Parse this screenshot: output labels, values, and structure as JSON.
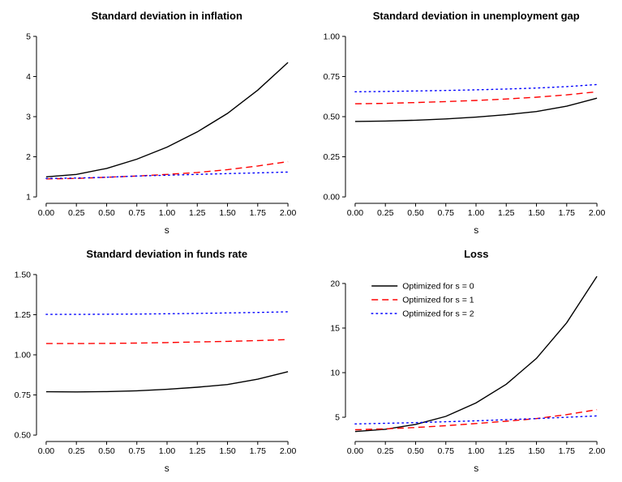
{
  "page": {
    "background": "#ffffff"
  },
  "chart_data": [
    {
      "type": "line",
      "title": "Standard deviation in inflation",
      "xlabel": "s",
      "xlim": [
        0,
        2
      ],
      "ylim": [
        1,
        5
      ],
      "x": [
        0,
        0.25,
        0.5,
        0.75,
        1,
        1.25,
        1.5,
        1.75,
        2
      ],
      "xticks": [
        0,
        0.25,
        0.5,
        0.75,
        1,
        1.25,
        1.5,
        1.75,
        2
      ],
      "xtick_labels": [
        "0.00",
        "0.25",
        "0.50",
        "0.75",
        "1.00",
        "1.25",
        "1.50",
        "1.75",
        "2.00"
      ],
      "yticks": [
        1,
        2,
        3,
        4,
        5
      ],
      "ytick_labels": [
        "1",
        "2",
        "3",
        "4",
        "5"
      ],
      "grid": false,
      "legend": {
        "show": false
      },
      "series": [
        {
          "name": "Optimized for s = 0",
          "color": "#000000",
          "dash": "solid",
          "values": [
            1.5,
            1.56,
            1.71,
            1.94,
            2.24,
            2.62,
            3.08,
            3.66,
            4.35
          ]
        },
        {
          "name": "Optimized for s = 1",
          "color": "#ff0000",
          "dash": "dashed",
          "values": [
            1.45,
            1.46,
            1.49,
            1.52,
            1.56,
            1.61,
            1.68,
            1.77,
            1.88
          ]
        },
        {
          "name": "Optimized for s = 2",
          "color": "#0000ff",
          "dash": "dotted",
          "values": [
            1.46,
            1.47,
            1.49,
            1.52,
            1.54,
            1.56,
            1.58,
            1.6,
            1.62
          ]
        }
      ]
    },
    {
      "type": "line",
      "title": "Standard deviation in unemployment gap",
      "xlabel": "s",
      "xlim": [
        0,
        2
      ],
      "ylim": [
        0,
        1
      ],
      "x": [
        0,
        0.25,
        0.5,
        0.75,
        1,
        1.25,
        1.5,
        1.75,
        2
      ],
      "xticks": [
        0,
        0.25,
        0.5,
        0.75,
        1,
        1.25,
        1.5,
        1.75,
        2
      ],
      "xtick_labels": [
        "0.00",
        "0.25",
        "0.50",
        "0.75",
        "1.00",
        "1.25",
        "1.50",
        "1.75",
        "2.00"
      ],
      "yticks": [
        0,
        0.25,
        0.5,
        0.75,
        1
      ],
      "ytick_labels": [
        "0.00",
        "0.25",
        "0.50",
        "0.75",
        "1.00"
      ],
      "grid": false,
      "legend": {
        "show": false
      },
      "series": [
        {
          "name": "Optimized for s = 0",
          "color": "#000000",
          "dash": "solid",
          "values": [
            0.47,
            0.473,
            0.478,
            0.486,
            0.497,
            0.512,
            0.532,
            0.565,
            0.615
          ]
        },
        {
          "name": "Optimized for s = 1",
          "color": "#ff0000",
          "dash": "dashed",
          "values": [
            0.58,
            0.583,
            0.588,
            0.594,
            0.601,
            0.61,
            0.621,
            0.636,
            0.655
          ]
        },
        {
          "name": "Optimized for s = 2",
          "color": "#0000ff",
          "dash": "dotted",
          "values": [
            0.655,
            0.657,
            0.66,
            0.663,
            0.667,
            0.672,
            0.678,
            0.687,
            0.7
          ]
        }
      ]
    },
    {
      "type": "line",
      "title": "Standard deviation in funds rate",
      "xlabel": "s",
      "xlim": [
        0,
        2
      ],
      "ylim": [
        0.5,
        1.5
      ],
      "x": [
        0,
        0.25,
        0.5,
        0.75,
        1,
        1.25,
        1.5,
        1.75,
        2
      ],
      "xticks": [
        0,
        0.25,
        0.5,
        0.75,
        1,
        1.25,
        1.5,
        1.75,
        2
      ],
      "xtick_labels": [
        "0.00",
        "0.25",
        "0.50",
        "0.75",
        "1.00",
        "1.25",
        "1.50",
        "1.75",
        "2.00"
      ],
      "yticks": [
        0.5,
        0.75,
        1,
        1.25,
        1.5
      ],
      "ytick_labels": [
        "0.50",
        "0.75",
        "1.00",
        "1.25",
        "1.50"
      ],
      "grid": false,
      "legend": {
        "show": false
      },
      "series": [
        {
          "name": "Optimized for s = 0",
          "color": "#000000",
          "dash": "solid",
          "values": [
            0.77,
            0.769,
            0.771,
            0.776,
            0.785,
            0.798,
            0.815,
            0.848,
            0.895
          ]
        },
        {
          "name": "Optimized for s = 1",
          "color": "#ff0000",
          "dash": "dashed",
          "values": [
            1.07,
            1.07,
            1.071,
            1.073,
            1.076,
            1.08,
            1.084,
            1.089,
            1.095
          ]
        },
        {
          "name": "Optimized for s = 2",
          "color": "#0000ff",
          "dash": "dotted",
          "values": [
            1.252,
            1.252,
            1.253,
            1.254,
            1.256,
            1.258,
            1.261,
            1.264,
            1.268
          ]
        }
      ]
    },
    {
      "type": "line",
      "title": "Loss",
      "xlabel": "s",
      "xlim": [
        0,
        2
      ],
      "ylim": [
        3,
        21
      ],
      "x": [
        0,
        0.25,
        0.5,
        0.75,
        1,
        1.25,
        1.5,
        1.75,
        2
      ],
      "xticks": [
        0,
        0.25,
        0.5,
        0.75,
        1,
        1.25,
        1.5,
        1.75,
        2
      ],
      "xtick_labels": [
        "0.00",
        "0.25",
        "0.50",
        "0.75",
        "1.00",
        "1.25",
        "1.50",
        "1.75",
        "2.00"
      ],
      "yticks": [
        5,
        10,
        15,
        20
      ],
      "ytick_labels": [
        "5",
        "10",
        "15",
        "20"
      ],
      "grid": false,
      "legend": {
        "show": true,
        "position": "top-left"
      },
      "series": [
        {
          "name": "Optimized for s = 0",
          "color": "#000000",
          "dash": "solid",
          "values": [
            3.4,
            3.65,
            4.2,
            5.1,
            6.6,
            8.7,
            11.6,
            15.6,
            20.8
          ]
        },
        {
          "name": "Optimized for s = 1",
          "color": "#ff0000",
          "dash": "dashed",
          "values": [
            3.6,
            3.7,
            3.85,
            4.05,
            4.3,
            4.55,
            4.85,
            5.3,
            5.85
          ]
        },
        {
          "name": "Optimized for s = 2",
          "color": "#0000ff",
          "dash": "dotted",
          "values": [
            4.25,
            4.32,
            4.4,
            4.5,
            4.6,
            4.72,
            4.85,
            5.0,
            5.15
          ]
        }
      ]
    }
  ]
}
